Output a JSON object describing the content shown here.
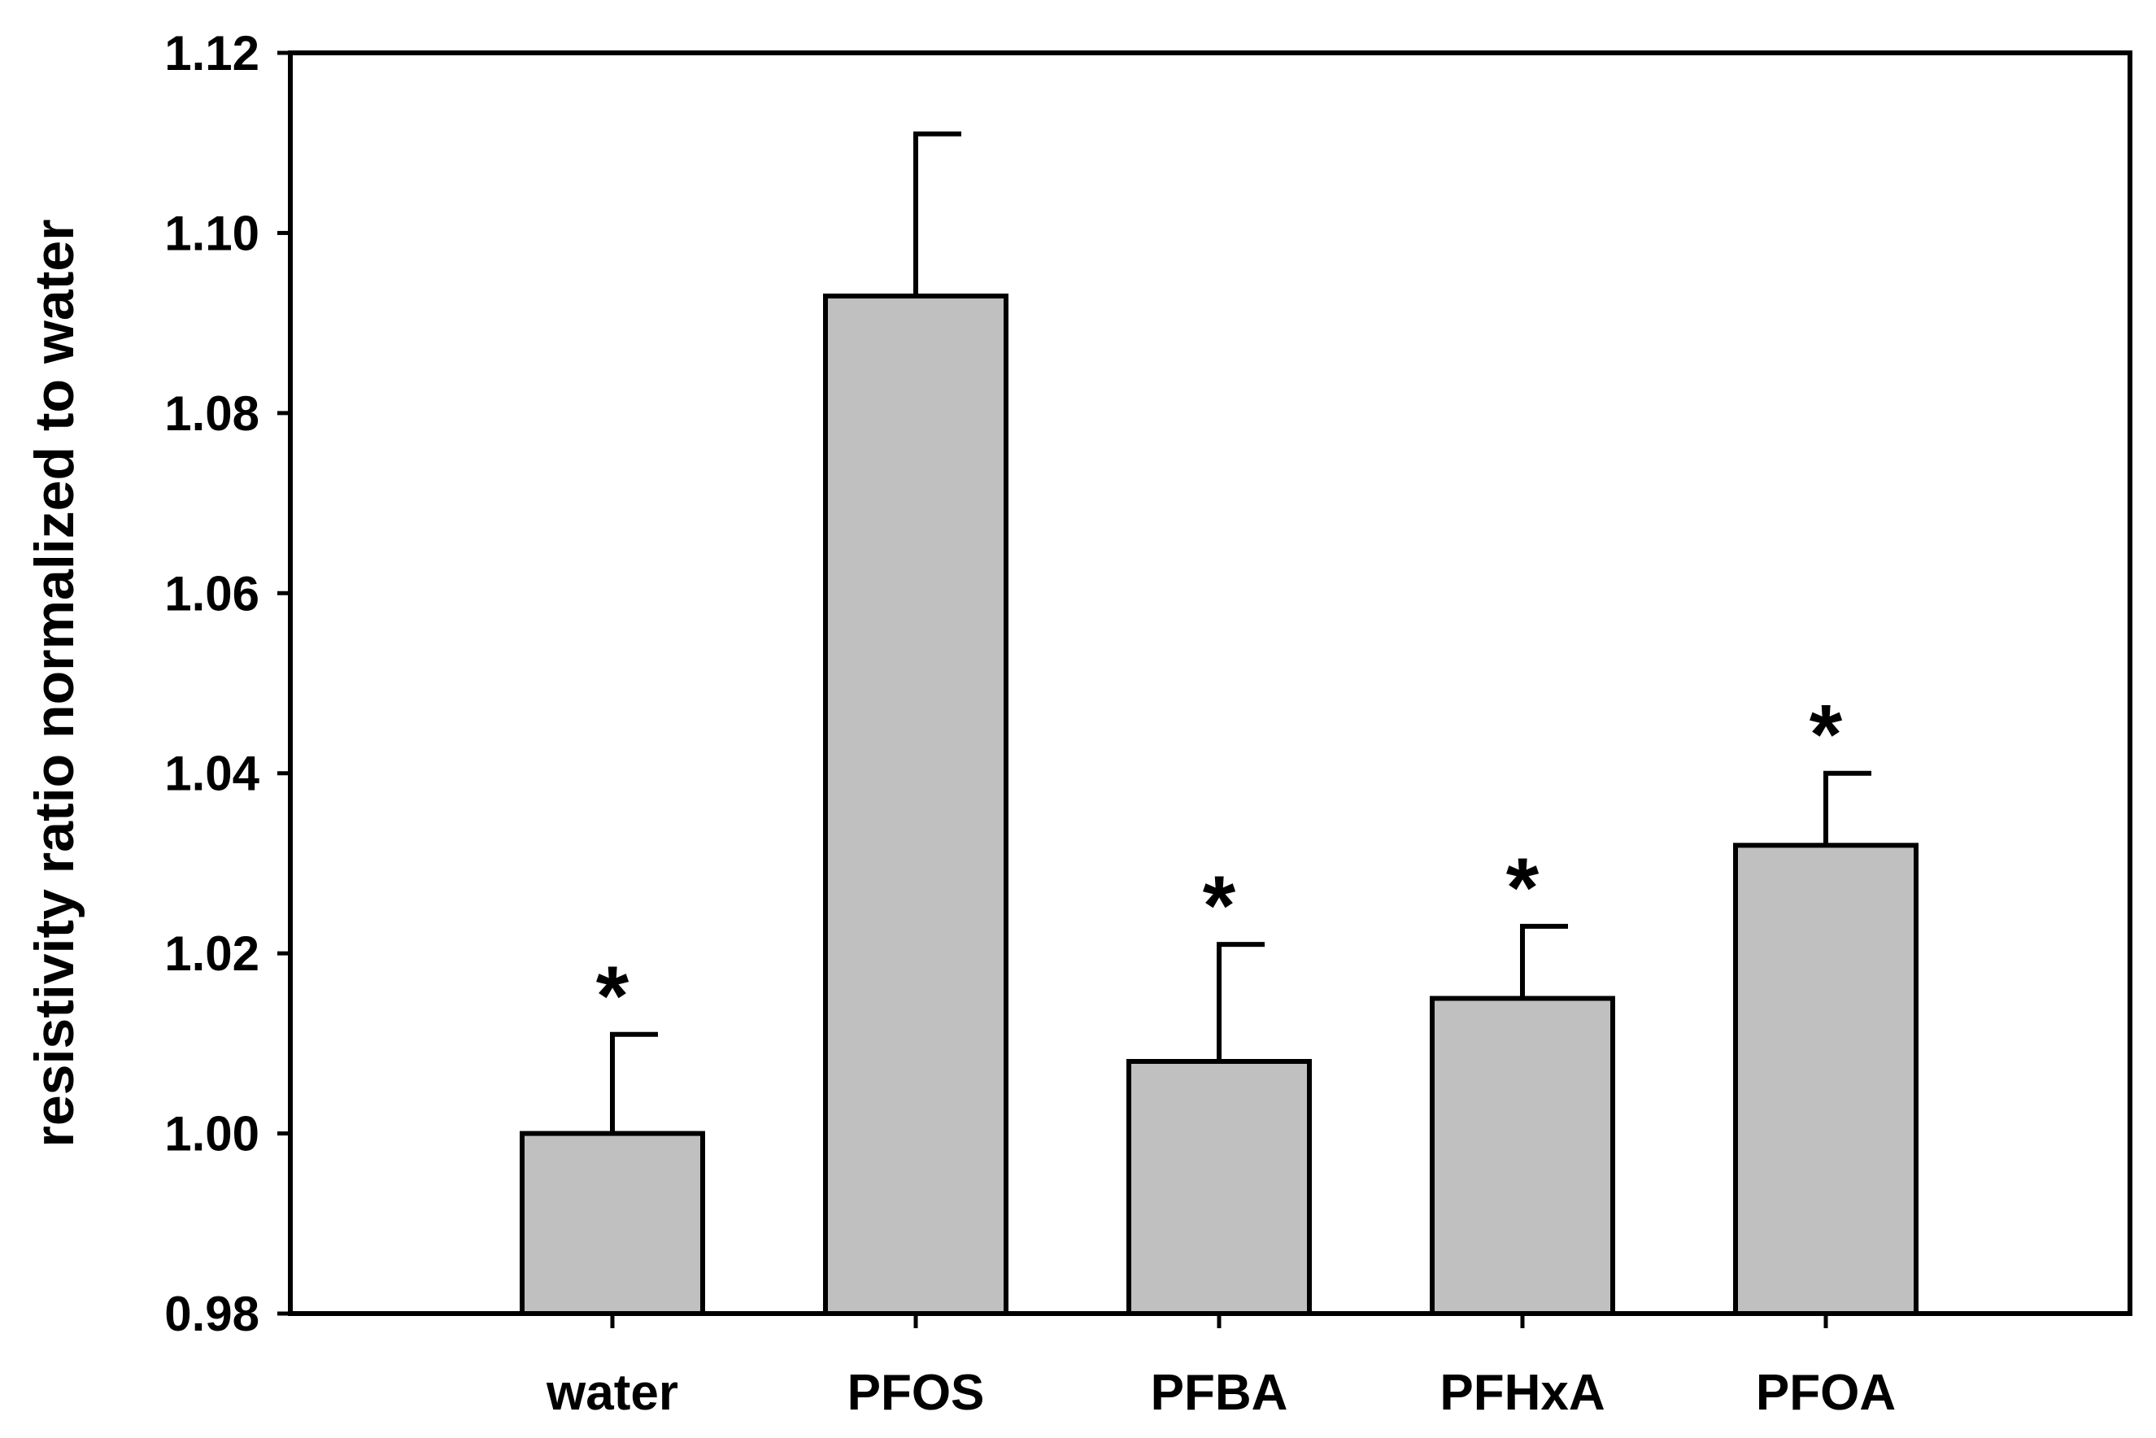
{
  "chart_data": {
    "type": "bar",
    "title": "",
    "xlabel": "",
    "ylabel": "resistivity ratio normalized to water",
    "ylim": [
      0.98,
      1.12
    ],
    "yticks": [
      0.98,
      1.0,
      1.02,
      1.04,
      1.06,
      1.08,
      1.1,
      1.12
    ],
    "ytick_labels": [
      "0.98",
      "1.00",
      "1.02",
      "1.04",
      "1.06",
      "1.08",
      "1.10",
      "1.12"
    ],
    "categories": [
      "water",
      "PFOS",
      "PFBA",
      "PFHxA",
      "PFOA"
    ],
    "values": [
      1.0,
      1.093,
      1.008,
      1.015,
      1.032
    ],
    "error_upper": [
      0.011,
      0.018,
      0.013,
      0.008,
      0.008
    ],
    "significance_marks": [
      "*",
      "",
      "*",
      "*",
      "*"
    ],
    "bar_color": "#c0c0c0",
    "grid": false,
    "legend": "none"
  }
}
